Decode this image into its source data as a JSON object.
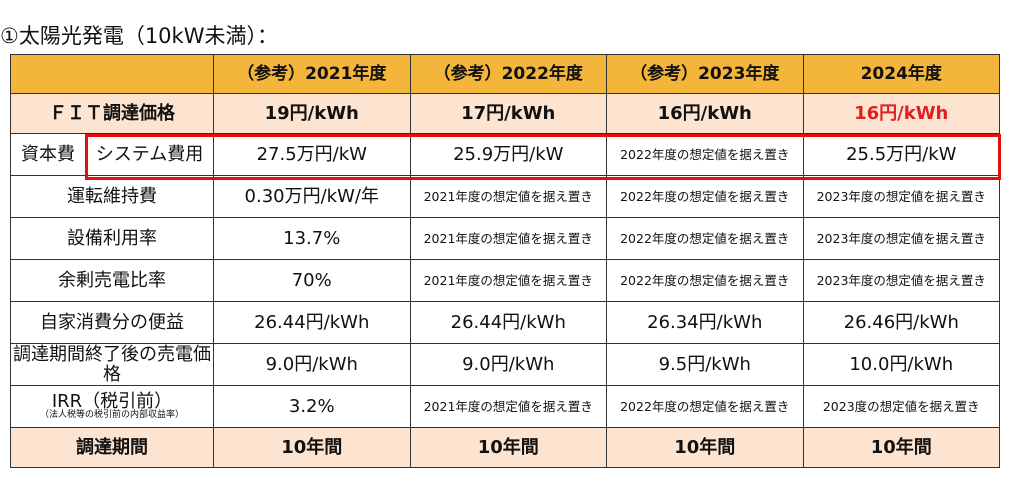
{
  "title": "①太陽光発電（10kW未満）：",
  "columns": [
    "（参考）2021年度",
    "（参考）2022年度",
    "（参考）2023年度",
    "2024年度"
  ],
  "fit": {
    "label": "ＦＩＴ調達価格",
    "values": [
      "19円/kWh",
      "17円/kWh",
      "16円/kWh",
      "16円/kWh"
    ]
  },
  "system": {
    "group": "資本費",
    "label": "システム費用",
    "values": [
      "27.5万円/kW",
      "25.9万円/kW",
      "2022年度の想定値を据え置き",
      "25.5万円/kW"
    ]
  },
  "rows": [
    {
      "label": "運転維持費",
      "values": [
        "0.30万円/kW/年",
        "2021年度の想定値を据え置き",
        "2022年度の想定値を据え置き",
        "2023年度の想定値を据え置き"
      ]
    },
    {
      "label": "設備利用率",
      "values": [
        "13.7%",
        "2021年度の想定値を据え置き",
        "2022年度の想定値を据え置き",
        "2023年度の想定値を据え置き"
      ]
    },
    {
      "label": "余剰売電比率",
      "values": [
        "70%",
        "2021年度の想定値を据え置き",
        "2022年度の想定値を据え置き",
        "2023年度の想定値を据え置き"
      ]
    },
    {
      "label": "自家消費分の便益",
      "values": [
        "26.44円/kWh",
        "26.44円/kWh",
        "26.34円/kWh",
        "26.46円/kWh"
      ]
    },
    {
      "label": "調達期間終了後の売電価格",
      "values": [
        "9.0円/kWh",
        "9.0円/kWh",
        "9.5円/kWh",
        "10.0円/kWh"
      ]
    }
  ],
  "irr": {
    "label": "IRR（税引前）",
    "sublabel": "（法人税等の税引前の内部収益率）",
    "values": [
      "3.2%",
      "2021年度の想定値を据え置き",
      "2022年度の想定値を据え置き",
      "2023度の想定値を据え置き"
    ]
  },
  "period": {
    "label": "調達期間",
    "values": [
      "10年間",
      "10年間",
      "10年間",
      "10年間"
    ]
  },
  "colors": {
    "header": "#f4b63a",
    "peach": "#fde4d0",
    "highlight": "#e01010"
  }
}
